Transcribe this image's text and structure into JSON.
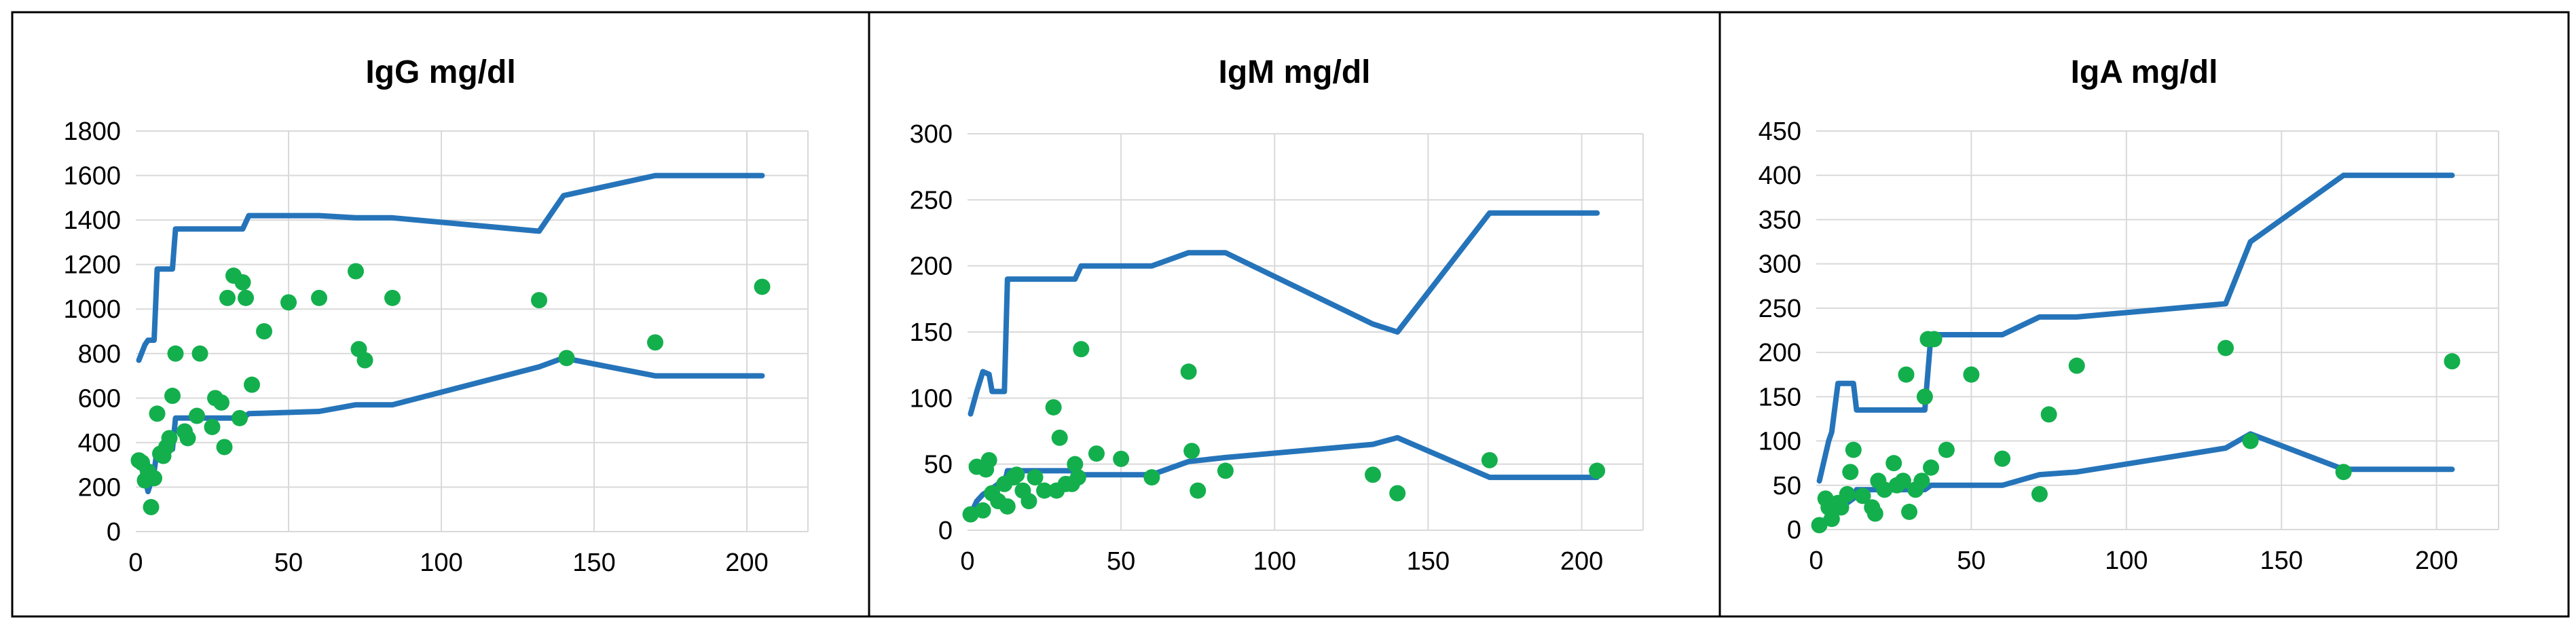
{
  "colors": {
    "line": "#2574BA",
    "point": "#13AF4D",
    "grid": "#D9D9D9",
    "frame": "#000000"
  },
  "chart_data": [
    {
      "type": "scatter",
      "title": "IgG mg/dl",
      "xlabel": "",
      "ylabel": "",
      "xlim": [
        0,
        220
      ],
      "ylim": [
        0,
        1800
      ],
      "x_ticks": [
        0,
        50,
        100,
        150,
        200
      ],
      "y_ticks": [
        0,
        200,
        400,
        600,
        800,
        1000,
        1200,
        1400,
        1600,
        1800
      ],
      "grid": true,
      "legend": "none",
      "series": [
        {
          "kind": "line",
          "role": "upper",
          "x": [
            1,
            3,
            4,
            6,
            7,
            12,
            13,
            35,
            37,
            60,
            72,
            84,
            132,
            140,
            170,
            205
          ],
          "y": [
            770,
            840,
            860,
            860,
            1180,
            1180,
            1360,
            1360,
            1420,
            1420,
            1410,
            1410,
            1350,
            1510,
            1600,
            1600
          ]
        },
        {
          "kind": "line",
          "role": "lower",
          "x": [
            1,
            3,
            4,
            6,
            7,
            12,
            13,
            35,
            37,
            60,
            72,
            84,
            132,
            140,
            170,
            205
          ],
          "y": [
            320,
            240,
            180,
            270,
            370,
            370,
            510,
            510,
            530,
            540,
            570,
            570,
            740,
            780,
            700,
            700
          ]
        },
        {
          "kind": "points",
          "x": [
            1,
            2,
            3,
            4,
            5,
            6,
            7,
            8,
            9,
            10,
            11,
            12,
            13,
            16,
            17,
            20,
            21,
            25,
            26,
            28,
            29,
            30,
            32,
            34,
            35,
            36,
            38,
            42,
            50,
            60,
            72,
            73,
            75,
            84,
            132,
            141,
            170,
            205
          ],
          "y": [
            320,
            310,
            230,
            270,
            110,
            240,
            530,
            350,
            340,
            380,
            420,
            610,
            800,
            450,
            420,
            520,
            800,
            470,
            600,
            580,
            380,
            1050,
            1150,
            510,
            1120,
            1050,
            660,
            900,
            1030,
            1050,
            1170,
            820,
            770,
            1050,
            1040,
            780,
            850,
            1100
          ]
        }
      ]
    },
    {
      "type": "scatter",
      "title": "IgM mg/dl",
      "xlabel": "",
      "ylabel": "",
      "xlim": [
        0,
        220
      ],
      "ylim": [
        0,
        300
      ],
      "x_ticks": [
        0,
        50,
        100,
        150,
        200
      ],
      "y_ticks": [
        0,
        50,
        100,
        150,
        200,
        250,
        300
      ],
      "grid": true,
      "legend": "none",
      "series": [
        {
          "kind": "line",
          "role": "upper",
          "x": [
            1,
            3,
            5,
            7,
            8,
            12,
            13,
            35,
            37,
            60,
            72,
            84,
            132,
            140,
            170,
            205
          ],
          "y": [
            88,
            105,
            120,
            118,
            105,
            105,
            190,
            190,
            200,
            200,
            210,
            210,
            156,
            150,
            240,
            240
          ]
        },
        {
          "kind": "line",
          "role": "lower",
          "x": [
            1,
            3,
            5,
            7,
            10,
            12,
            13,
            35,
            37,
            60,
            72,
            84,
            132,
            140,
            170,
            205
          ],
          "y": [
            12,
            22,
            27,
            30,
            35,
            35,
            45,
            45,
            42,
            42,
            52,
            55,
            65,
            70,
            40,
            40
          ]
        },
        {
          "kind": "points",
          "x": [
            1,
            3,
            5,
            6,
            7,
            8,
            10,
            12,
            13,
            15,
            16,
            18,
            20,
            22,
            25,
            28,
            29,
            30,
            32,
            34,
            35,
            36,
            37,
            42,
            50,
            60,
            72,
            73,
            75,
            84,
            132,
            140,
            170,
            205
          ],
          "y": [
            12,
            48,
            15,
            46,
            53,
            28,
            22,
            35,
            18,
            40,
            42,
            30,
            22,
            40,
            30,
            93,
            30,
            70,
            35,
            35,
            50,
            40,
            137,
            58,
            54,
            40,
            120,
            60,
            30,
            45,
            42,
            28,
            53,
            45
          ]
        }
      ]
    },
    {
      "type": "scatter",
      "title": "IgA mg/dl",
      "xlabel": "",
      "ylabel": "",
      "xlim": [
        0,
        220
      ],
      "ylim": [
        0,
        450
      ],
      "x_ticks": [
        0,
        50,
        100,
        150,
        200
      ],
      "y_ticks": [
        0,
        50,
        100,
        150,
        200,
        250,
        300,
        350,
        400,
        450
      ],
      "grid": true,
      "legend": "none",
      "series": [
        {
          "kind": "line",
          "role": "upper",
          "x": [
            1,
            4,
            5,
            7,
            12,
            13,
            35,
            37,
            60,
            72,
            84,
            132,
            140,
            170,
            205
          ],
          "y": [
            55,
            100,
            110,
            165,
            165,
            135,
            135,
            220,
            220,
            240,
            240,
            255,
            325,
            400,
            400
          ]
        },
        {
          "kind": "line",
          "role": "lower",
          "x": [
            1,
            4,
            6,
            8,
            12,
            13,
            35,
            37,
            60,
            72,
            84,
            132,
            140,
            170,
            205
          ],
          "y": [
            5,
            15,
            20,
            25,
            35,
            45,
            45,
            50,
            50,
            62,
            65,
            92,
            108,
            68,
            68
          ]
        },
        {
          "kind": "points",
          "x": [
            1,
            3,
            4,
            5,
            7,
            8,
            10,
            11,
            12,
            15,
            18,
            19,
            20,
            22,
            25,
            26,
            28,
            29,
            30,
            32,
            34,
            35,
            36,
            37,
            38,
            42,
            50,
            60,
            72,
            75,
            84,
            132,
            140,
            170,
            205
          ],
          "y": [
            5,
            35,
            25,
            12,
            30,
            25,
            40,
            65,
            90,
            38,
            25,
            18,
            55,
            45,
            75,
            50,
            55,
            175,
            20,
            45,
            55,
            150,
            215,
            70,
            215,
            90,
            175,
            80,
            40,
            130,
            185,
            205,
            100,
            65,
            190
          ]
        }
      ]
    }
  ]
}
